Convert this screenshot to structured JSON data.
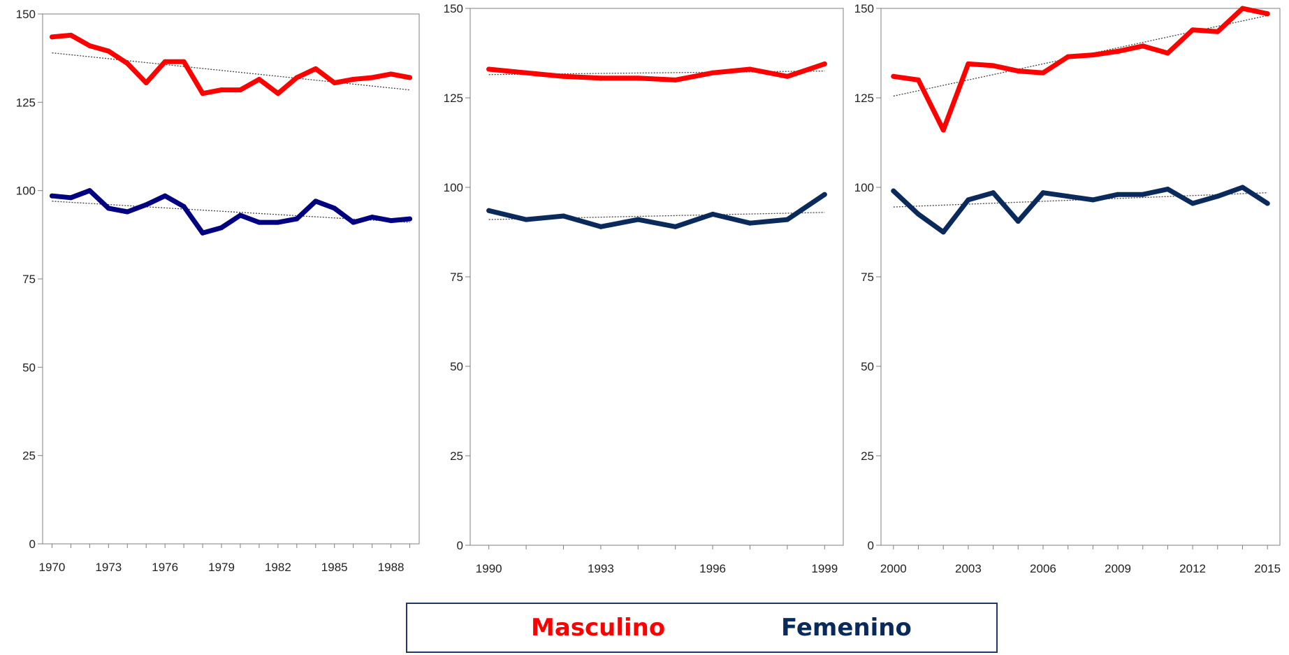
{
  "colors": {
    "masculino": "#ff0000",
    "femenino_panel1": "#000080",
    "femenino": "#0a2a5c",
    "trend": "#404040",
    "axis": "#7f7f7f",
    "legend_border": "#1f3864"
  },
  "legend": {
    "masculino": "Masculino",
    "femenino": "Femenino",
    "placement": "bottom-center"
  },
  "chart_data": [
    {
      "type": "line",
      "ylim": [
        0,
        150
      ],
      "yticks": [
        0,
        25,
        50,
        75,
        100,
        125,
        150
      ],
      "xlim": [
        1969.5,
        1989.5
      ],
      "xticks": [
        1970,
        1973,
        1976,
        1979,
        1982,
        1985,
        1988
      ],
      "x": [
        1970,
        1971,
        1972,
        1973,
        1974,
        1975,
        1976,
        1977,
        1978,
        1979,
        1980,
        1981,
        1982,
        1983,
        1984,
        1985,
        1986,
        1987,
        1988,
        1989
      ],
      "series": [
        {
          "name": "Masculino",
          "values": [
            143.5,
            144,
            141,
            139.5,
            136,
            130.5,
            136.5,
            136.5,
            127.5,
            128.5,
            128.5,
            131.5,
            127.5,
            132,
            134.5,
            130.5,
            131.5,
            132,
            133,
            132
          ]
        },
        {
          "name": "Femenino",
          "values": [
            98.5,
            98,
            100,
            95,
            94,
            96,
            98.5,
            95.5,
            88,
            89.5,
            93,
            91,
            91,
            92,
            97,
            95,
            91,
            92.5,
            91.5,
            92
          ]
        }
      ],
      "trendlines": [
        {
          "series": "Masculino",
          "from": [
            1970,
            139
          ],
          "to": [
            1989,
            128.5
          ]
        },
        {
          "series": "Femenino",
          "from": [
            1970,
            97
          ],
          "to": [
            1989,
            91
          ]
        }
      ]
    },
    {
      "type": "line",
      "ylim": [
        0,
        150
      ],
      "yticks": [
        0,
        25,
        50,
        75,
        100,
        125,
        150
      ],
      "xlim": [
        1989.5,
        1999.5
      ],
      "xticks": [
        1990,
        1993,
        1996,
        1999
      ],
      "x": [
        1990,
        1991,
        1992,
        1993,
        1994,
        1995,
        1996,
        1997,
        1998,
        1999
      ],
      "series": [
        {
          "name": "Masculino",
          "values": [
            133,
            132,
            131,
            130.5,
            130.5,
            130,
            132,
            133,
            131,
            134.5
          ]
        },
        {
          "name": "Femenino",
          "values": [
            93.5,
            91,
            92,
            89,
            91,
            89,
            92.5,
            90,
            91,
            98
          ]
        }
      ],
      "trendlines": [
        {
          "series": "Masculino",
          "from": [
            1990,
            131.5
          ],
          "to": [
            1999,
            132.5
          ]
        },
        {
          "series": "Femenino",
          "from": [
            1990,
            91
          ],
          "to": [
            1999,
            93
          ]
        }
      ]
    },
    {
      "type": "line",
      "ylim": [
        0,
        150
      ],
      "yticks": [
        0,
        25,
        50,
        75,
        100,
        125,
        150
      ],
      "xlim": [
        1999.5,
        2015.5
      ],
      "xticks": [
        2000,
        2003,
        2006,
        2009,
        2012,
        2015
      ],
      "x": [
        2000,
        2001,
        2002,
        2003,
        2004,
        2005,
        2006,
        2007,
        2008,
        2009,
        2010,
        2011,
        2012,
        2013,
        2014,
        2015
      ],
      "series": [
        {
          "name": "Masculino",
          "values": [
            131,
            130,
            116,
            134.5,
            134,
            132.5,
            132,
            136.5,
            137,
            138,
            139.5,
            137.5,
            144,
            143.5,
            150,
            148.5
          ]
        },
        {
          "name": "Femenino",
          "values": [
            99,
            92.5,
            87.5,
            96.5,
            98.5,
            90.5,
            98.5,
            97.5,
            96.5,
            98,
            98,
            99.5,
            95.5,
            97.5,
            100,
            95.5
          ]
        }
      ],
      "trendlines": [
        {
          "series": "Masculino",
          "from": [
            2000,
            125.5
          ],
          "to": [
            2015,
            148
          ]
        },
        {
          "series": "Femenino",
          "from": [
            2000,
            94.5
          ],
          "to": [
            2015,
            98.5
          ]
        }
      ]
    }
  ]
}
